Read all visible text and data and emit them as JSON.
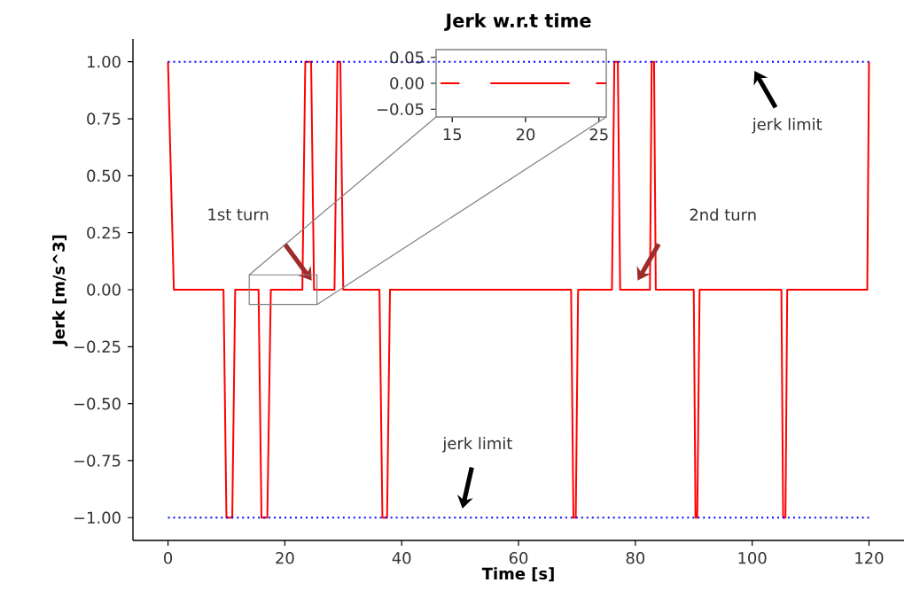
{
  "chart_data": [
    {
      "type": "line",
      "title": "Jerk w.r.t time",
      "xlabel": "Time [s]",
      "ylabel": "Jerk [m/s^3]",
      "series": [
        {
          "color": "#ff0000",
          "x": [
            0,
            1,
            9.5,
            10,
            11,
            11.5,
            15.5,
            16,
            17,
            17.6,
            23,
            23.5,
            24.5,
            25,
            28.5,
            29,
            29.5,
            30,
            36.2,
            36.7,
            37.5,
            38,
            69,
            69.4,
            69.8,
            70.2,
            76,
            76.4,
            77,
            77.4,
            82.5,
            82.8,
            83.2,
            83.5,
            90,
            90.3,
            90.6,
            91,
            105,
            105.3,
            105.7,
            106,
            119.7,
            120
          ],
          "values": [
            1,
            0,
            0,
            -1,
            -1,
            0,
            0,
            -1,
            -1,
            0,
            0,
            1,
            1,
            0,
            0,
            1,
            1,
            0,
            0,
            -1,
            -1,
            0,
            0,
            -1,
            -1,
            0,
            0,
            1,
            1,
            0,
            0,
            1,
            1,
            0,
            0,
            -1,
            -1,
            0,
            0,
            -1,
            -1,
            0,
            0,
            1
          ]
        }
      ],
      "xlim": [
        -6,
        126
      ],
      "ylim": [
        -1.1,
        1.1
      ],
      "xticks": [
        0,
        20,
        40,
        60,
        80,
        100,
        120
      ],
      "yticks": [
        {
          "value": -1,
          "label": "−1.00"
        },
        {
          "value": -0.75,
          "label": "−0.75"
        },
        {
          "value": -0.5,
          "label": "−0.50"
        },
        {
          "value": -0.25,
          "label": "−0.25"
        },
        {
          "value": 0,
          "label": "0.00"
        },
        {
          "value": 0.25,
          "label": "0.25"
        },
        {
          "value": 0.5,
          "label": "0.50"
        },
        {
          "value": 0.75,
          "label": "0.75"
        },
        {
          "value": 1,
          "label": "1.00"
        }
      ],
      "ref_lines": [
        {
          "axis": "y",
          "value": 1,
          "color": "#0000ff",
          "line_style": "dotted"
        },
        {
          "axis": "y",
          "value": -1,
          "color": "#0000ff",
          "line_style": "dotted"
        }
      ],
      "annotations": [
        "jerk limit",
        "1st turn",
        "2nd turn",
        "jerk limit"
      ]
    },
    {
      "type": "line",
      "series": [
        {
          "color": "#ff0000",
          "x": [
            14.2,
            15.5,
            16,
            17.6,
            23,
            23.5,
            24.8,
            25.5
          ],
          "values": [
            0,
            0,
            null,
            0,
            0,
            null,
            0,
            0
          ]
        }
      ],
      "xlim": [
        13.9,
        25.5
      ],
      "ylim": [
        -0.065,
        0.065
      ],
      "xticks": [
        15,
        20,
        25
      ],
      "yticks": [
        {
          "value": -0.05,
          "label": "−0.05"
        },
        {
          "value": 0,
          "label": "0.00"
        },
        {
          "value": 0.05,
          "label": "0.05"
        }
      ]
    }
  ]
}
